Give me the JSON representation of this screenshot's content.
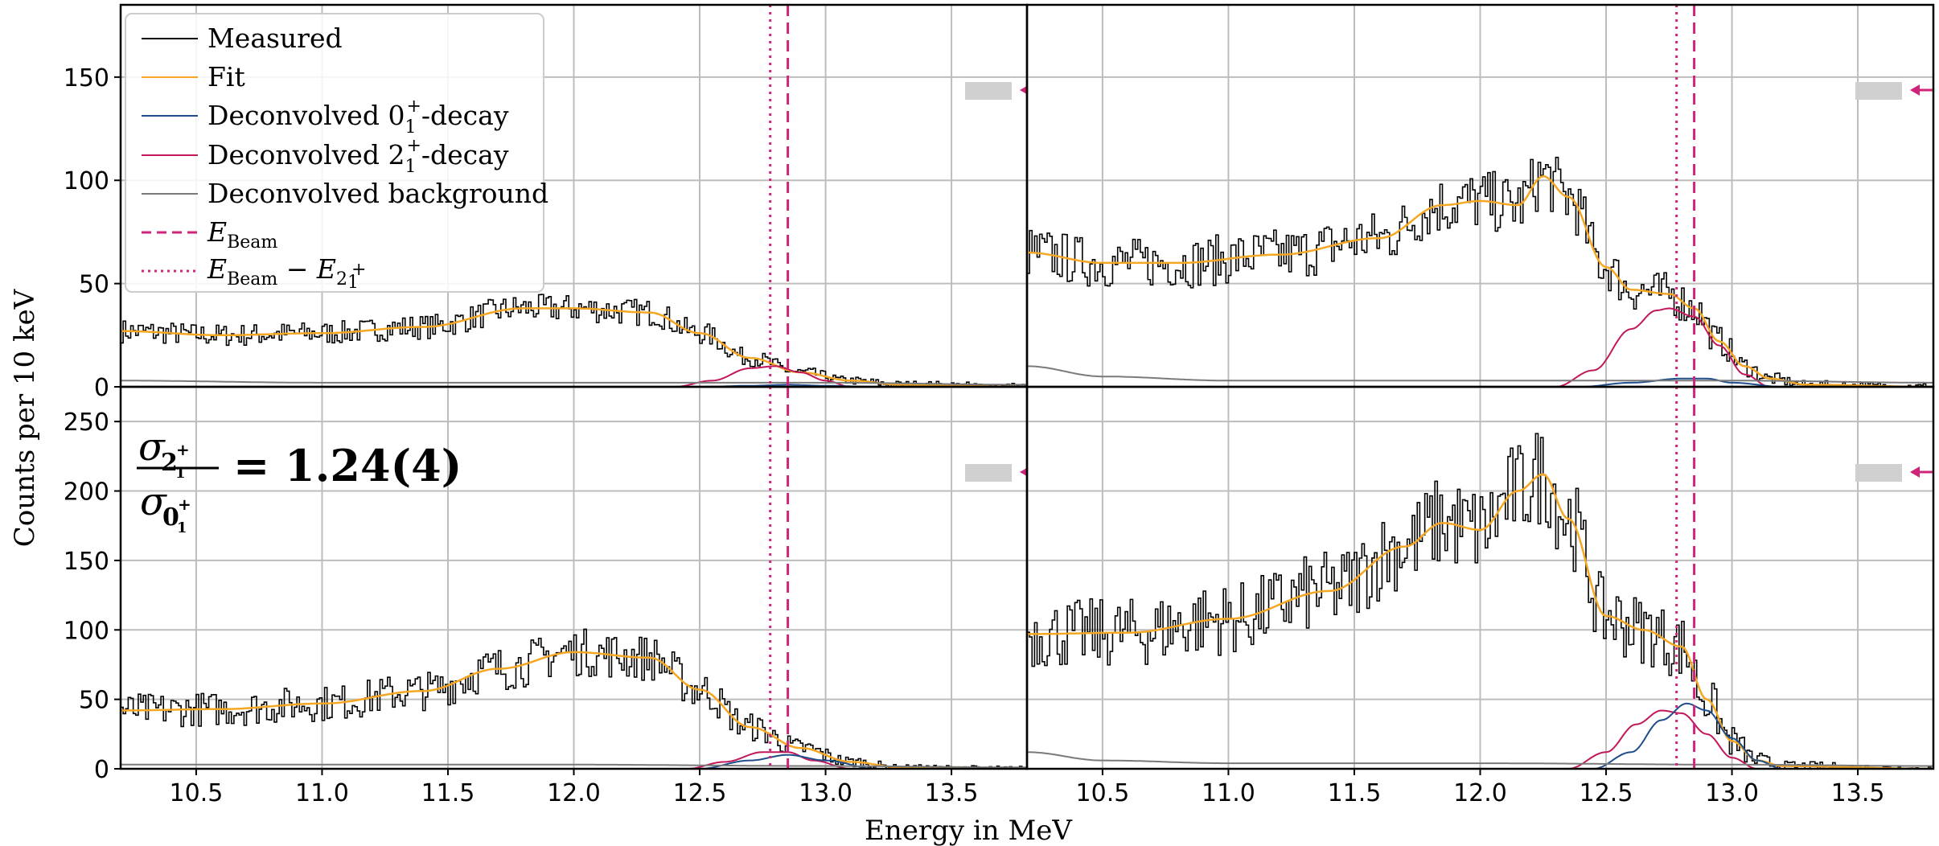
{
  "figure": {
    "xlabel": "Energy in MeV",
    "ylabel": "Counts per 10 keV",
    "ratio_annotation": {
      "numerator_symbol": "σ",
      "numerator_sub": "2",
      "numerator_sub2": "1",
      "numerator_sup": "+",
      "denominator_symbol": "σ",
      "denominator_sub": "0",
      "denominator_sub2": "1",
      "denominator_sup": "+",
      "value_text": "= 1.24(4)"
    },
    "legend": {
      "measured": "Measured",
      "fit": "Fit",
      "dec0_pre": "Deconvolved 0",
      "dec0_sub": "1",
      "dec0_sup": "+",
      "dec0_post": "-decay",
      "dec2_pre": "Deconvolved 2",
      "dec2_sub": "1",
      "dec2_sup": "+",
      "dec2_post": "-decay",
      "bkg": "Deconvolved background",
      "ebeam_main": "E",
      "ebeam_sub": "Beam",
      "ediff_main": "E",
      "ediff_sub": "Beam",
      "ediff_mid": " − E",
      "ediff_sub2": "2",
      "ediff_sub3": "1",
      "ediff_sup": "+"
    },
    "colors": {
      "measured": "#000000",
      "fit": "#f5a623",
      "decay0": "#1f4e8c",
      "decay2": "#c2185b",
      "background": "#7a7a7a",
      "beam": "#d0247a",
      "grid": "#bdbdbd"
    }
  },
  "chart_data": [
    {
      "type": "line",
      "panel": "top-left",
      "xlim": [
        10.2,
        13.8
      ],
      "ylim": [
        0,
        185
      ],
      "xticks": [
        10.5,
        11.0,
        11.5,
        12.0,
        12.5,
        13.0,
        13.5
      ],
      "yticks": [
        0,
        50,
        100,
        150
      ],
      "E_beam": 12.85,
      "E_beam_minus_E21": 12.78,
      "series": [
        {
          "name": "Fit",
          "x": [
            10.2,
            10.6,
            11.0,
            11.4,
            11.8,
            12.0,
            12.3,
            12.5,
            12.7,
            12.9,
            13.1,
            13.3,
            13.8
          ],
          "y": [
            27,
            25,
            26,
            29,
            38,
            38,
            36,
            26,
            14,
            7,
            3,
            1,
            0
          ]
        },
        {
          "name": "Deconvolved 2_1^+ -decay",
          "x": [
            12.4,
            12.55,
            12.7,
            12.8,
            12.9,
            13.0,
            13.1
          ],
          "y": [
            0,
            3,
            9,
            10,
            7,
            3,
            0
          ]
        },
        {
          "name": "Deconvolved 0_1^+ -decay",
          "x": [
            12.5,
            12.7,
            12.85,
            13.0,
            13.2
          ],
          "y": [
            0,
            0.5,
            1,
            0.5,
            0
          ]
        },
        {
          "name": "Deconvolved background",
          "x": [
            10.2,
            11.0,
            12.0,
            13.0,
            13.8
          ],
          "y": [
            3,
            2,
            2,
            2,
            1
          ]
        }
      ],
      "measured_noise": 7
    },
    {
      "type": "line",
      "panel": "top-right",
      "xlim": [
        10.2,
        13.8
      ],
      "ylim": [
        0,
        185
      ],
      "xticks": [
        10.5,
        11.0,
        11.5,
        12.0,
        12.5,
        13.0,
        13.5
      ],
      "yticks": [
        0,
        50,
        100,
        150
      ],
      "E_beam": 12.85,
      "E_beam_minus_E21": 12.78,
      "series": [
        {
          "name": "Fit",
          "x": [
            10.2,
            10.5,
            10.8,
            11.2,
            11.6,
            11.85,
            12.0,
            12.15,
            12.25,
            12.35,
            12.5,
            12.6,
            12.75,
            12.85,
            12.95,
            13.05,
            13.15,
            13.3,
            13.8
          ],
          "y": [
            65,
            60,
            60,
            64,
            72,
            88,
            90,
            88,
            102,
            92,
            58,
            47,
            45,
            38,
            22,
            10,
            4,
            1,
            0
          ]
        },
        {
          "name": "Deconvolved 2_1^+ -decay",
          "x": [
            12.3,
            12.45,
            12.6,
            12.7,
            12.75,
            12.85,
            12.95,
            13.05,
            13.15
          ],
          "y": [
            0,
            8,
            28,
            37,
            38,
            34,
            20,
            6,
            0
          ]
        },
        {
          "name": "Deconvolved 0_1^+ -decay",
          "x": [
            12.4,
            12.6,
            12.8,
            12.9,
            13.0,
            13.2
          ],
          "y": [
            0,
            2,
            4,
            4,
            2,
            0
          ]
        },
        {
          "name": "Deconvolved background",
          "x": [
            10.2,
            10.5,
            11.0,
            12.0,
            13.0,
            13.8
          ],
          "y": [
            10,
            5,
            3,
            3,
            3,
            2
          ]
        }
      ],
      "measured_noise": 10
    },
    {
      "type": "line",
      "panel": "bottom-left",
      "xlim": [
        10.2,
        13.8
      ],
      "ylim": [
        0,
        275
      ],
      "xticks": [
        10.5,
        11.0,
        11.5,
        12.0,
        12.5,
        13.0,
        13.5
      ],
      "yticks": [
        0,
        50,
        100,
        150,
        200,
        250
      ],
      "E_beam": 12.85,
      "E_beam_minus_E21": 12.78,
      "series": [
        {
          "name": "Fit",
          "x": [
            10.2,
            10.6,
            11.0,
            11.4,
            11.7,
            12.0,
            12.3,
            12.5,
            12.7,
            12.9,
            13.1,
            13.3,
            13.8
          ],
          "y": [
            42,
            43,
            47,
            56,
            72,
            84,
            80,
            57,
            30,
            15,
            5,
            1,
            0
          ]
        },
        {
          "name": "Deconvolved 2_1^+ -decay",
          "x": [
            12.45,
            12.6,
            12.75,
            12.85,
            12.95,
            13.1
          ],
          "y": [
            0,
            5,
            12,
            12,
            6,
            0
          ]
        },
        {
          "name": "Deconvolved 0_1^+ -decay",
          "x": [
            12.5,
            12.7,
            12.85,
            13.0,
            13.2
          ],
          "y": [
            0,
            6,
            10,
            6,
            0
          ]
        },
        {
          "name": "Deconvolved background",
          "x": [
            10.2,
            11.0,
            12.0,
            13.0,
            13.8
          ],
          "y": [
            3,
            3,
            3,
            2,
            1
          ]
        }
      ],
      "measured_noise": 12
    },
    {
      "type": "line",
      "panel": "bottom-right",
      "xlim": [
        10.2,
        13.8
      ],
      "ylim": [
        0,
        275
      ],
      "xticks": [
        10.5,
        11.0,
        11.5,
        12.0,
        12.5,
        13.0,
        13.5
      ],
      "yticks": [
        0,
        50,
        100,
        150,
        200,
        250
      ],
      "E_beam": 12.85,
      "E_beam_minus_E21": 12.78,
      "series": [
        {
          "name": "Fit",
          "x": [
            10.2,
            10.6,
            11.0,
            11.4,
            11.7,
            11.85,
            12.0,
            12.15,
            12.25,
            12.35,
            12.5,
            12.65,
            12.8,
            12.9,
            13.0,
            13.1,
            13.2,
            13.8
          ],
          "y": [
            97,
            98,
            108,
            128,
            160,
            177,
            172,
            200,
            212,
            180,
            110,
            100,
            88,
            50,
            20,
            6,
            2,
            0
          ]
        },
        {
          "name": "Deconvolved 2_1^+ -decay",
          "x": [
            12.35,
            12.5,
            12.62,
            12.72,
            12.8,
            12.9,
            13.0,
            13.1
          ],
          "y": [
            0,
            12,
            32,
            42,
            40,
            25,
            8,
            0
          ]
        },
        {
          "name": "Deconvolved 0_1^+ -decay",
          "x": [
            12.45,
            12.6,
            12.72,
            12.82,
            12.9,
            13.0,
            13.1,
            13.2
          ],
          "y": [
            0,
            12,
            35,
            47,
            42,
            22,
            6,
            0
          ]
        },
        {
          "name": "Deconvolved background",
          "x": [
            10.2,
            10.5,
            11.0,
            12.0,
            13.0,
            13.8
          ],
          "y": [
            12,
            6,
            4,
            4,
            3,
            2
          ]
        }
      ],
      "measured_noise": 16
    }
  ]
}
